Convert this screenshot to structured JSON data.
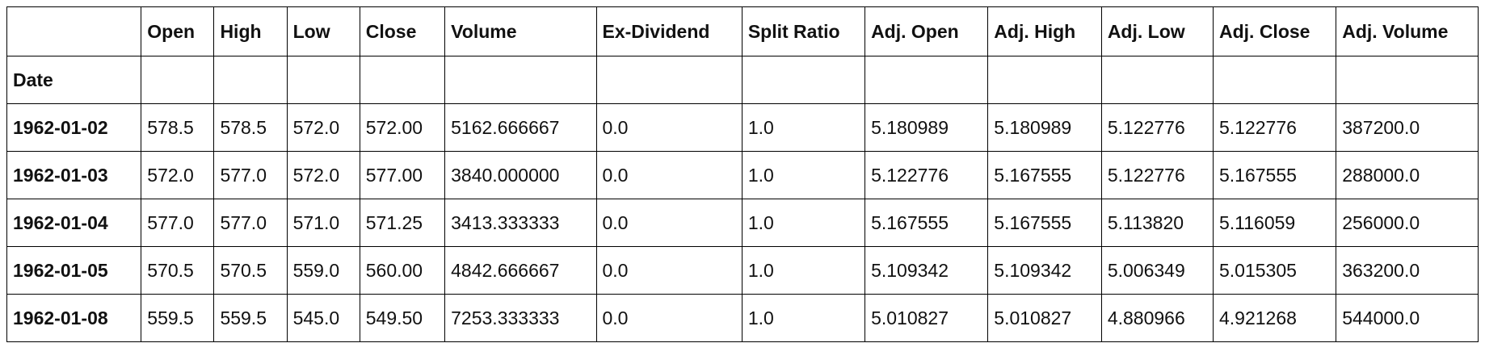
{
  "table": {
    "columns": [
      "",
      "Open",
      "High",
      "Low",
      "Close",
      "Volume",
      "Ex-Dividend",
      "Split Ratio",
      "Adj. Open",
      "Adj. High",
      "Adj. Low",
      "Adj. Close",
      "Adj. Volume"
    ],
    "index_name": "Date",
    "rows": [
      {
        "date": "1962-01-02",
        "values": [
          "578.5",
          "578.5",
          "572.0",
          "572.00",
          "5162.666667",
          "0.0",
          "1.0",
          "5.180989",
          "5.180989",
          "5.122776",
          "5.122776",
          "387200.0"
        ]
      },
      {
        "date": "1962-01-03",
        "values": [
          "572.0",
          "577.0",
          "572.0",
          "577.00",
          "3840.000000",
          "0.0",
          "1.0",
          "5.122776",
          "5.167555",
          "5.122776",
          "5.167555",
          "288000.0"
        ]
      },
      {
        "date": "1962-01-04",
        "values": [
          "577.0",
          "577.0",
          "571.0",
          "571.25",
          "3413.333333",
          "0.0",
          "1.0",
          "5.167555",
          "5.167555",
          "5.113820",
          "5.116059",
          "256000.0"
        ]
      },
      {
        "date": "1962-01-05",
        "values": [
          "570.5",
          "570.5",
          "559.0",
          "560.00",
          "4842.666667",
          "0.0",
          "1.0",
          "5.109342",
          "5.109342",
          "5.006349",
          "5.015305",
          "363200.0"
        ]
      },
      {
        "date": "1962-01-08",
        "values": [
          "559.5",
          "559.5",
          "545.0",
          "549.50",
          "7253.333333",
          "0.0",
          "1.0",
          "5.010827",
          "5.010827",
          "4.880966",
          "4.921268",
          "544000.0"
        ]
      }
    ]
  }
}
